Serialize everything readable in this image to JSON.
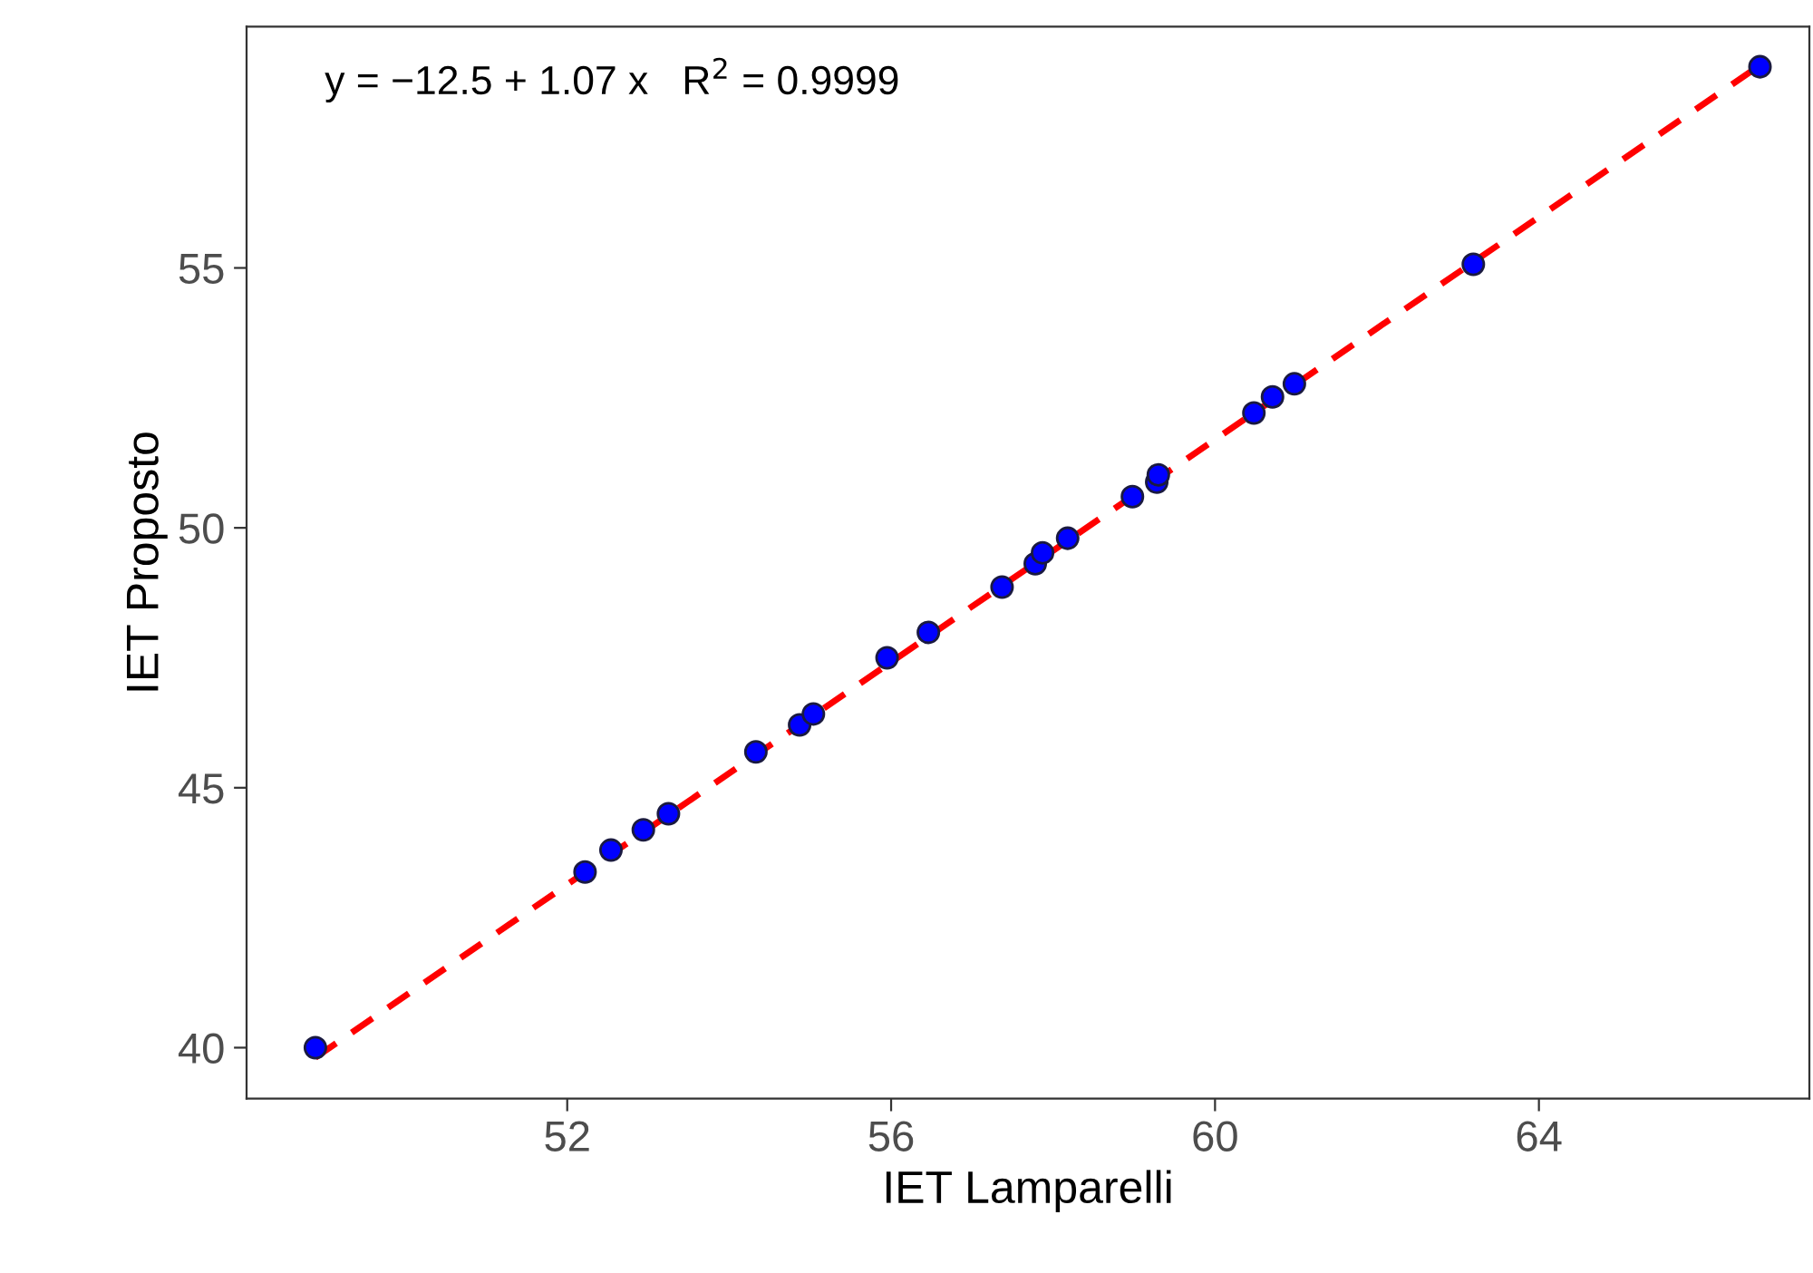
{
  "chart_data": {
    "type": "scatter",
    "xlabel": "IET Lamparelli",
    "ylabel": "IET Proposto",
    "annotations": [
      "y = −12.5 + 1.07 x   R$^{2}$ = 0.9999"
    ],
    "series": [
      {
        "color": "#0000ff",
        "marker": "circle",
        "x": [
          48.89,
          52.22,
          52.54,
          52.94,
          53.25,
          54.33,
          54.87,
          55.04,
          55.95,
          56.46,
          57.37,
          57.78,
          57.87,
          58.18,
          58.98,
          59.28,
          59.3,
          60.48,
          60.71,
          60.98,
          63.19,
          66.73
        ],
        "values": [
          40.0,
          43.38,
          43.8,
          44.19,
          44.5,
          45.69,
          46.21,
          46.42,
          47.5,
          47.99,
          48.86,
          49.31,
          49.52,
          49.8,
          50.6,
          50.88,
          51.02,
          52.21,
          52.52,
          52.77,
          55.07,
          58.87
        ]
      },
      {
        "type": "line",
        "color": "#ff0000",
        "line_style": "dashed",
        "x": [
          48.89,
          66.73
        ],
        "values": [
          39.81,
          58.9
        ]
      }
    ],
    "xlim": [
      48.04,
      67.34
    ],
    "xticks": [
      52,
      56,
      60,
      64
    ],
    "ylim": [
      39.02,
      59.64
    ],
    "yticks": [
      40,
      45,
      50,
      55
    ],
    "grid": false,
    "legend": false
  }
}
